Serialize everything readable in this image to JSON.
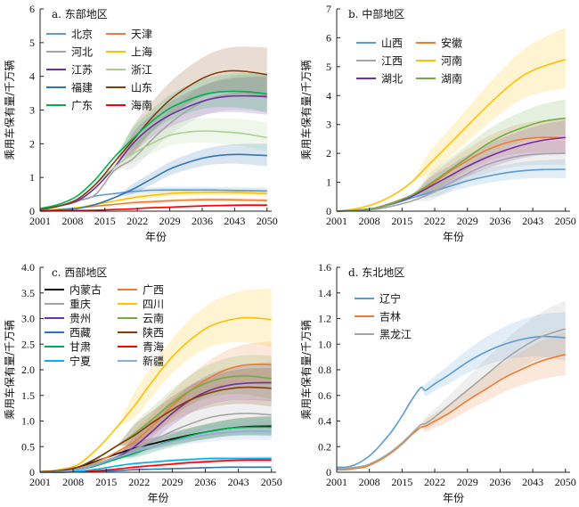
{
  "chart_data": [
    {
      "type": "line",
      "panel": "a",
      "title": "a. 东部地区",
      "xlabel": "年份",
      "ylabel": "乘用车保有量/千万辆",
      "xlim": [
        2001,
        2051
      ],
      "ylim": [
        0,
        6
      ],
      "xticks": [
        2001,
        2008,
        2015,
        2022,
        2029,
        2036,
        2043,
        2050
      ],
      "yticks": [
        0,
        1,
        2,
        3,
        4,
        5,
        6
      ],
      "ytick_labels": [
        "0",
        "1",
        "2",
        "3",
        "4",
        "5",
        "6"
      ],
      "grid": false,
      "legend_position": "top-left",
      "legend_columns": 2,
      "x": [
        2001,
        2005,
        2009,
        2013,
        2017,
        2021,
        2025,
        2029,
        2033,
        2037,
        2041,
        2045,
        2050
      ],
      "series": [
        {
          "name": "北京",
          "color": "#5b9bd5",
          "values": [
            0.03,
            0.15,
            0.3,
            0.45,
            0.52,
            0.58,
            0.62,
            0.63,
            0.63,
            0.63,
            0.62,
            0.61,
            0.6
          ],
          "band": [
            0.08,
            0.1
          ]
        },
        {
          "name": "天津",
          "color": "#ed7d31",
          "values": [
            0.01,
            0.05,
            0.1,
            0.15,
            0.2,
            0.25,
            0.28,
            0.31,
            0.33,
            0.34,
            0.34,
            0.33,
            0.32
          ],
          "band": [
            0.05,
            0.06
          ]
        },
        {
          "name": "河北",
          "color": "#a5a5a5",
          "values": [
            0.05,
            0.15,
            0.3,
            0.5,
            1.2,
            1.55,
            2.1,
            2.6,
            3.0,
            3.3,
            3.45,
            3.5,
            3.45
          ],
          "band": [
            0.3,
            0.6
          ]
        },
        {
          "name": "上海",
          "color": "#ffc000",
          "values": [
            0.02,
            0.05,
            0.1,
            0.2,
            0.3,
            0.4,
            0.47,
            0.52,
            0.55,
            0.56,
            0.56,
            0.55,
            0.52
          ],
          "band": [
            0.08,
            0.1
          ]
        },
        {
          "name": "江苏",
          "color": "#7030a0",
          "values": [
            0.05,
            0.15,
            0.3,
            0.7,
            1.3,
            2.0,
            2.5,
            2.85,
            3.1,
            3.3,
            3.4,
            3.42,
            3.4
          ],
          "band": [
            0.3,
            0.6
          ]
        },
        {
          "name": "浙江",
          "color": "#a9d18e",
          "values": [
            0.05,
            0.15,
            0.35,
            0.8,
            1.3,
            1.7,
            2.0,
            2.25,
            2.35,
            2.38,
            2.35,
            2.3,
            2.18
          ],
          "band": [
            0.3,
            0.45
          ]
        },
        {
          "name": "福建",
          "color": "#2e75b6",
          "values": [
            0.02,
            0.04,
            0.08,
            0.2,
            0.4,
            0.65,
            0.95,
            1.25,
            1.45,
            1.6,
            1.67,
            1.68,
            1.65
          ],
          "band": [
            0.15,
            0.35
          ]
        },
        {
          "name": "山东",
          "color": "#843c0c",
          "values": [
            0.05,
            0.15,
            0.35,
            0.8,
            1.45,
            2.1,
            2.75,
            3.3,
            3.7,
            4.0,
            4.15,
            4.15,
            4.05
          ],
          "band": [
            0.4,
            0.8
          ]
        },
        {
          "name": "广东",
          "color": "#00b050",
          "values": [
            0.08,
            0.2,
            0.45,
            0.95,
            1.6,
            2.15,
            2.65,
            3.05,
            3.3,
            3.48,
            3.55,
            3.55,
            3.48
          ],
          "band": [
            0.3,
            0.6
          ]
        },
        {
          "name": "海南",
          "color": "#ff0000",
          "values": [
            0.0,
            0.01,
            0.02,
            0.03,
            0.05,
            0.07,
            0.1,
            0.12,
            0.14,
            0.16,
            0.17,
            0.18,
            0.18
          ],
          "band": [
            0.02,
            0.04
          ]
        }
      ]
    },
    {
      "type": "line",
      "panel": "b",
      "title": "b. 中部地区",
      "xlabel": "年份",
      "ylabel": "乘用车保有量/千万辆",
      "xlim": [
        2001,
        2051
      ],
      "ylim": [
        0,
        7
      ],
      "xticks": [
        2001,
        2008,
        2015,
        2022,
        2029,
        2036,
        2043,
        2050
      ],
      "yticks": [
        0,
        1,
        2,
        3,
        4,
        5,
        6,
        7
      ],
      "ytick_labels": [
        "0",
        "1",
        "2",
        "3",
        "4",
        "5",
        "6",
        "7"
      ],
      "grid": false,
      "legend_position": "top-left",
      "legend_columns": 2,
      "x": [
        2001,
        2005,
        2009,
        2013,
        2017,
        2021,
        2025,
        2029,
        2033,
        2037,
        2041,
        2045,
        2050
      ],
      "series": [
        {
          "name": "山西",
          "color": "#5b9bd5",
          "values": [
            0.0,
            0.03,
            0.1,
            0.25,
            0.45,
            0.65,
            0.85,
            1.05,
            1.2,
            1.32,
            1.4,
            1.44,
            1.45
          ],
          "band": [
            0.2,
            0.35
          ]
        },
        {
          "name": "安徽",
          "color": "#ed7d31",
          "values": [
            0.0,
            0.03,
            0.1,
            0.3,
            0.55,
            0.9,
            1.35,
            1.75,
            2.1,
            2.35,
            2.5,
            2.55,
            2.55
          ],
          "band": [
            0.3,
            0.65
          ]
        },
        {
          "name": "江西",
          "color": "#a5a5a5",
          "values": [
            0.0,
            0.02,
            0.06,
            0.18,
            0.35,
            0.6,
            0.95,
            1.3,
            1.6,
            1.8,
            1.93,
            1.98,
            2.0
          ],
          "band": [
            0.25,
            0.45
          ]
        },
        {
          "name": "河南",
          "color": "#ffc000",
          "values": [
            0.0,
            0.08,
            0.25,
            0.55,
            1.0,
            1.65,
            2.3,
            2.95,
            3.6,
            4.2,
            4.7,
            5.0,
            5.25
          ],
          "band": [
            0.4,
            1.1
          ]
        },
        {
          "name": "湖北",
          "color": "#7030a0",
          "values": [
            0.0,
            0.03,
            0.1,
            0.27,
            0.5,
            0.85,
            1.2,
            1.55,
            1.85,
            2.1,
            2.3,
            2.45,
            2.55
          ],
          "band": [
            0.3,
            0.6
          ]
        },
        {
          "name": "湖南",
          "color": "#70ad47",
          "values": [
            0.0,
            0.03,
            0.1,
            0.28,
            0.55,
            0.95,
            1.4,
            1.85,
            2.3,
            2.65,
            2.9,
            3.1,
            3.22
          ],
          "band": [
            0.35,
            0.65
          ]
        }
      ]
    },
    {
      "type": "line",
      "panel": "c",
      "title": "c. 西部地区",
      "xlabel": "年份",
      "ylabel": "乘用车保有量/千万辆",
      "xlim": [
        2001,
        2051
      ],
      "ylim": [
        0,
        4
      ],
      "xticks": [
        2001,
        2008,
        2015,
        2022,
        2029,
        2036,
        2043,
        2050
      ],
      "yticks": [
        0,
        0.5,
        1.0,
        1.5,
        2.0,
        2.5,
        3.0,
        3.5,
        4.0
      ],
      "ytick_labels": [
        "0",
        "0.5",
        "1.0",
        "1.5",
        "2.0",
        "2.5",
        "3.0",
        "3.5",
        "4.0"
      ],
      "grid": false,
      "legend_position": "top-left",
      "legend_columns": 2,
      "x": [
        2001,
        2005,
        2009,
        2013,
        2017,
        2021,
        2025,
        2029,
        2033,
        2037,
        2041,
        2045,
        2050
      ],
      "series": [
        {
          "name": "内蒙古",
          "color": "#000000",
          "values": [
            0.01,
            0.03,
            0.1,
            0.22,
            0.35,
            0.47,
            0.56,
            0.65,
            0.73,
            0.8,
            0.86,
            0.89,
            0.9
          ],
          "band": [
            0.1,
            0.2
          ]
        },
        {
          "name": "广西",
          "color": "#ed7d31",
          "values": [
            0.0,
            0.02,
            0.07,
            0.2,
            0.38,
            0.6,
            0.92,
            1.3,
            1.6,
            1.85,
            2.02,
            2.1,
            2.1
          ],
          "band": [
            0.2,
            0.45
          ]
        },
        {
          "name": "重庆",
          "color": "#a5a5a5",
          "values": [
            0.0,
            0.02,
            0.06,
            0.17,
            0.3,
            0.45,
            0.62,
            0.8,
            0.95,
            1.07,
            1.13,
            1.15,
            1.12
          ],
          "band": [
            0.15,
            0.3
          ]
        },
        {
          "name": "四川",
          "color": "#ffc000",
          "values": [
            0.01,
            0.05,
            0.15,
            0.45,
            0.85,
            1.3,
            1.8,
            2.25,
            2.6,
            2.85,
            2.97,
            3.02,
            2.98
          ],
          "band": [
            0.25,
            0.6
          ]
        },
        {
          "name": "贵州",
          "color": "#7030a0",
          "values": [
            0.0,
            0.01,
            0.05,
            0.13,
            0.28,
            0.5,
            0.82,
            1.15,
            1.42,
            1.6,
            1.7,
            1.74,
            1.75
          ],
          "band": [
            0.2,
            0.4
          ]
        },
        {
          "name": "云南",
          "color": "#70ad47",
          "values": [
            0.01,
            0.03,
            0.1,
            0.28,
            0.5,
            0.75,
            1.05,
            1.35,
            1.6,
            1.77,
            1.86,
            1.88,
            1.83
          ],
          "band": [
            0.2,
            0.45
          ]
        },
        {
          "name": "西藏",
          "color": "#2e75b6",
          "values": [
            0.0,
            0.0,
            0.01,
            0.02,
            0.03,
            0.05,
            0.06,
            0.07,
            0.08,
            0.09,
            0.1,
            0.1,
            0.1
          ],
          "band": [
            0.01,
            0.02
          ]
        },
        {
          "name": "陕西",
          "color": "#843c0c",
          "values": [
            0.01,
            0.03,
            0.1,
            0.27,
            0.5,
            0.72,
            0.98,
            1.22,
            1.42,
            1.55,
            1.63,
            1.66,
            1.64
          ],
          "band": [
            0.2,
            0.4
          ]
        },
        {
          "name": "甘肃",
          "color": "#00b050",
          "values": [
            0.0,
            0.01,
            0.05,
            0.13,
            0.25,
            0.37,
            0.5,
            0.62,
            0.72,
            0.8,
            0.86,
            0.88,
            0.88
          ],
          "band": [
            0.1,
            0.2
          ]
        },
        {
          "name": "青海",
          "color": "#ff0000",
          "values": [
            0.0,
            0.0,
            0.01,
            0.03,
            0.06,
            0.1,
            0.13,
            0.16,
            0.19,
            0.21,
            0.23,
            0.24,
            0.24
          ],
          "band": [
            0.02,
            0.05
          ]
        },
        {
          "name": "宁夏",
          "color": "#00b0f0",
          "values": [
            0.0,
            0.0,
            0.02,
            0.06,
            0.12,
            0.17,
            0.2,
            0.23,
            0.25,
            0.27,
            0.27,
            0.27,
            0.27
          ],
          "band": [
            0.02,
            0.04
          ]
        },
        {
          "name": "新疆",
          "color": "#8faadc",
          "values": [
            0.0,
            0.01,
            0.05,
            0.15,
            0.28,
            0.4,
            0.5,
            0.6,
            0.68,
            0.74,
            0.78,
            0.8,
            0.8
          ],
          "band": [
            0.1,
            0.2
          ]
        }
      ]
    },
    {
      "type": "line",
      "panel": "d",
      "title": "d. 东北地区",
      "xlabel": "年份",
      "ylabel": "乘用车保有量/千万辆",
      "xlim": [
        2001,
        2051
      ],
      "ylim": [
        0,
        1.6
      ],
      "xticks": [
        2001,
        2008,
        2015,
        2022,
        2029,
        2036,
        2043,
        2050
      ],
      "yticks": [
        0,
        0.2,
        0.4,
        0.6,
        0.8,
        1.0,
        1.2,
        1.4,
        1.6
      ],
      "ytick_labels": [
        "0",
        "0.2",
        "0.4",
        "0.6",
        "0.8",
        "1.0",
        "1.2",
        "1.4",
        "1.6"
      ],
      "grid": false,
      "legend_position": "top-left",
      "legend_columns": 1,
      "x": [
        2001,
        2003,
        2005,
        2007,
        2009,
        2011,
        2013,
        2015,
        2017,
        2019,
        2020,
        2022,
        2025,
        2029,
        2033,
        2037,
        2041,
        2045,
        2050
      ],
      "series": [
        {
          "name": "辽宁",
          "color": "#5b9bd5",
          "values": [
            0.04,
            0.04,
            0.06,
            0.1,
            0.16,
            0.24,
            0.33,
            0.44,
            0.56,
            0.66,
            0.64,
            0.69,
            0.76,
            0.86,
            0.94,
            1.0,
            1.04,
            1.06,
            1.05
          ],
          "band": [
            0.05,
            0.2
          ]
        },
        {
          "name": "吉林",
          "color": "#ed7d31",
          "values": [
            0.02,
            0.02,
            0.03,
            0.04,
            0.07,
            0.11,
            0.16,
            0.22,
            0.29,
            0.35,
            0.36,
            0.4,
            0.46,
            0.56,
            0.65,
            0.74,
            0.81,
            0.87,
            0.92
          ],
          "band": [
            0.05,
            0.18
          ]
        },
        {
          "name": "黑龙江",
          "color": "#a5a5a5",
          "values": [
            0.03,
            0.03,
            0.04,
            0.05,
            0.08,
            0.12,
            0.17,
            0.23,
            0.3,
            0.37,
            0.38,
            0.43,
            0.52,
            0.64,
            0.76,
            0.88,
            0.98,
            1.06,
            1.12
          ],
          "band": [
            0.05,
            0.22
          ]
        }
      ]
    }
  ]
}
